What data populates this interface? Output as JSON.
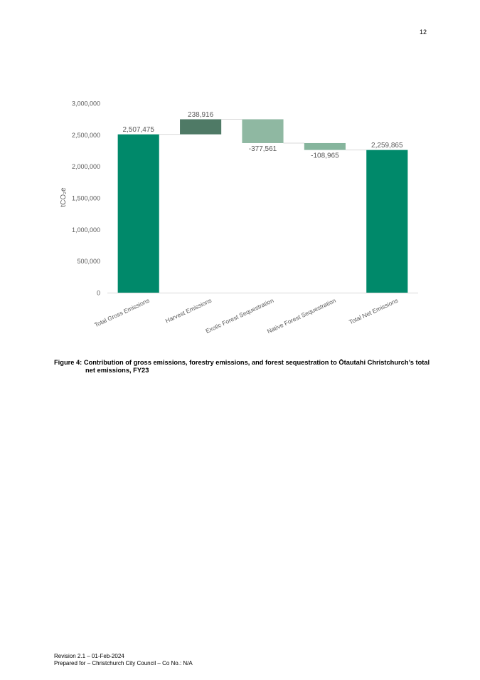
{
  "page_number": "12",
  "caption": {
    "label": "Figure 4:",
    "text_line1": "Contribution of gross emissions, forestry emissions, and forest sequestration to Ōtautahi Christchurch’s total",
    "text_line2": "net emissions, FY23"
  },
  "footer": {
    "revision": "Revision 2.1 – 01-Feb-2024",
    "prepared_for": "Prepared for – Christchurch City Council – Co No.: N/A"
  },
  "chart_data": {
    "type": "bar",
    "subtype": "waterfall",
    "title": "",
    "xlabel": "",
    "ylabel": "tCO₂e",
    "ylim": [
      0,
      3000000
    ],
    "yticks": [
      0,
      500000,
      1000000,
      1500000,
      2000000,
      2500000,
      3000000
    ],
    "ytick_labels": [
      "0",
      "500,000",
      "1,000,000",
      "1,500,000",
      "2,000,000",
      "2,500,000",
      "3,000,000"
    ],
    "grid": false,
    "categories": [
      "Total Gross Emissions",
      "Harvest Emissions",
      "Exotic Forest Sequestration",
      "Native Forest Sequestration",
      "Total Net Emissions"
    ],
    "values": [
      2507475,
      238916,
      -377561,
      -108965,
      2259865
    ],
    "value_labels": [
      "2,507,475",
      "238,916",
      "-377,561",
      "-108,965",
      "2,259,865"
    ],
    "bar_kind": [
      "total",
      "delta",
      "delta",
      "delta",
      "total"
    ],
    "colors": {
      "total": "#00896a",
      "increase": "#4f7a66",
      "decrease_large": "#8fb8a2",
      "decrease_small": "#86b59d",
      "connector": "#d9d9d9",
      "axis": "#d9d9d9",
      "text": "#595959"
    }
  }
}
